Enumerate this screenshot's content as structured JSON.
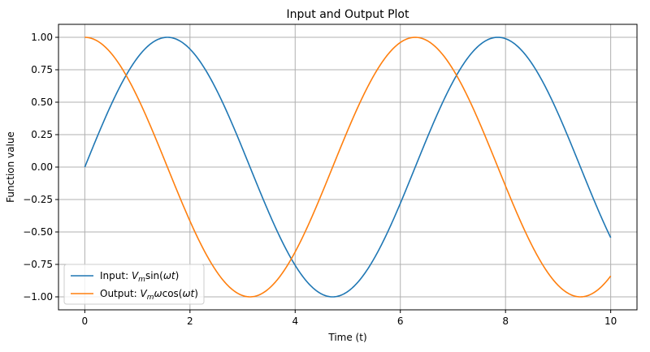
{
  "chart_data": {
    "type": "line",
    "title": "Input and Output Plot",
    "xlabel": "Time (t)",
    "ylabel": "Function value",
    "xlim": [
      -0.5,
      10.5
    ],
    "ylim": [
      -1.1,
      1.1
    ],
    "xticks": [
      0,
      2,
      4,
      6,
      8,
      10
    ],
    "xtick_labels": [
      "0",
      "2",
      "4",
      "6",
      "8",
      "10"
    ],
    "yticks": [
      1.0,
      0.75,
      0.5,
      0.25,
      0.0,
      -0.25,
      -0.5,
      -0.75,
      -1.0
    ],
    "ytick_labels": [
      "1.00",
      "0.75",
      "0.50",
      "0.25",
      "0.00",
      "−0.25",
      "−0.50",
      "−0.75",
      "−1.00"
    ],
    "grid": true,
    "legend_position": "lower-left",
    "x_range": [
      0,
      10
    ],
    "series": [
      {
        "name": "Input: Vmsin(ωt)",
        "legend_parts": [
          {
            "text": "Input: ",
            "italic": false
          },
          {
            "text": "V",
            "italic": true
          },
          {
            "text": "m",
            "italic": true,
            "sub": true
          },
          {
            "text": "sin(",
            "italic": false
          },
          {
            "text": "ωt",
            "italic": true
          },
          {
            "text": ")",
            "italic": false
          }
        ],
        "function": "sin",
        "color": "#1f77b4"
      },
      {
        "name": "Output: Vmωcos(ωt)",
        "legend_parts": [
          {
            "text": "Output: ",
            "italic": false
          },
          {
            "text": "V",
            "italic": true
          },
          {
            "text": "m",
            "italic": true,
            "sub": true
          },
          {
            "text": "ω",
            "italic": true
          },
          {
            "text": "cos(",
            "italic": false
          },
          {
            "text": "ωt",
            "italic": true
          },
          {
            "text": ")",
            "italic": false
          }
        ],
        "function": "cos",
        "color": "#ff7f0e"
      }
    ]
  }
}
